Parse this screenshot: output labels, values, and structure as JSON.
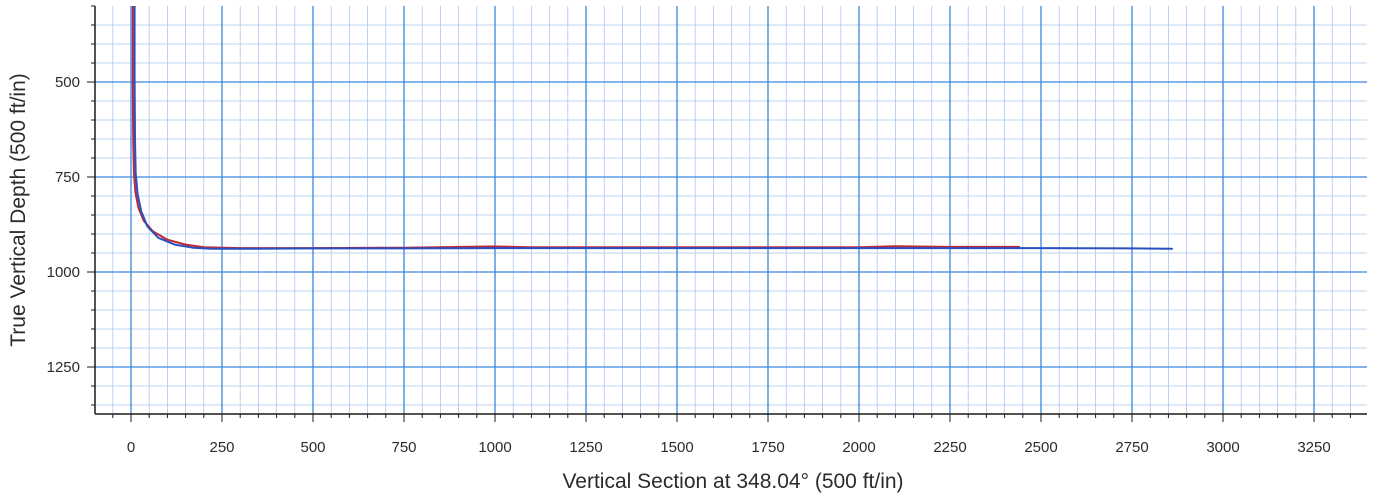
{
  "chart_data": {
    "type": "line",
    "title": "",
    "xlabel": "Vertical Section at 348.04° (500 ft/in)",
    "ylabel": "True Vertical Depth (500 ft/in)",
    "xlim": [
      -100,
      3400
    ],
    "ylim": [
      300,
      1365
    ],
    "y_inverted": true,
    "grid": true,
    "legend": "none",
    "x_ticks": [
      0,
      250,
      500,
      750,
      1000,
      1250,
      1500,
      1750,
      2000,
      2250,
      2500,
      2750,
      3000,
      3250
    ],
    "y_ticks": [
      500,
      750,
      1000,
      1250
    ],
    "series": [
      {
        "color": "#c0283a",
        "x": [
          5,
          5,
          6,
          8,
          12,
          20,
          35,
          60,
          100,
          150,
          200,
          300,
          500,
          750,
          980,
          1000,
          1100,
          1250,
          1500,
          1750,
          2000,
          2100,
          2250,
          2440
        ],
        "y": [
          300,
          500,
          650,
          740,
          790,
          830,
          865,
          893,
          915,
          928,
          935,
          937,
          937,
          936,
          933,
          933,
          935,
          935,
          935,
          935,
          935,
          932,
          934,
          934
        ]
      },
      {
        "color": "#2a4fbf",
        "x": [
          10,
          10,
          11,
          13,
          18,
          28,
          45,
          75,
          120,
          170,
          220,
          300,
          500,
          750,
          1000,
          1250,
          1500,
          1750,
          2000,
          2250,
          2500,
          2750,
          2860
        ],
        "y": [
          300,
          500,
          650,
          740,
          795,
          840,
          880,
          910,
          928,
          936,
          939,
          939,
          938,
          938,
          937,
          937,
          937,
          937,
          937,
          937,
          937,
          938,
          939
        ]
      }
    ]
  }
}
